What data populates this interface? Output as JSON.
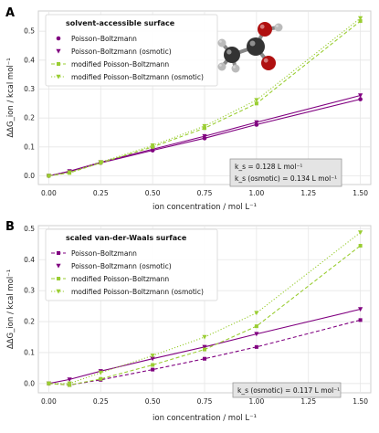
{
  "chart_data": [
    {
      "type": "line",
      "panel_label": "A",
      "xlabel": "ion concentration / mol L⁻¹",
      "ylabel": "ΔΔG_ion / kcal mol⁻¹",
      "xlim": [
        -0.05,
        1.55
      ],
      "ylim": [
        -0.03,
        0.57
      ],
      "xticks": [
        0.0,
        0.25,
        0.5,
        0.75,
        1.0,
        1.25,
        1.5
      ],
      "xtick_labels": [
        "0.00",
        "0.25",
        "0.50",
        "0.75",
        "1.00",
        "1.25",
        "1.50"
      ],
      "yticks": [
        0.0,
        0.1,
        0.2,
        0.3,
        0.4,
        0.5
      ],
      "ytick_labels": [
        "0.0",
        "0.1",
        "0.2",
        "0.3",
        "0.4",
        "0.5"
      ],
      "grid": true,
      "legend_title": "solvent-accessible surface",
      "legend_position": "top-left",
      "annotation": [
        "k_s = 0.128 L mol⁻¹",
        "k_s (osmotic) = 0.134 L mol⁻¹"
      ],
      "series": [
        {
          "name": "Poisson–Boltzmann",
          "color": "#800080",
          "marker": "circle",
          "line": "solid",
          "x": [
            0.0,
            0.1,
            0.25,
            0.5,
            0.75,
            1.0,
            1.5
          ],
          "values": [
            0.0,
            0.015,
            0.045,
            0.088,
            0.13,
            0.177,
            0.265
          ]
        },
        {
          "name": "Poisson–Boltzmann (osmotic)",
          "color": "#800080",
          "marker": "triangle-down",
          "line": "solid",
          "x": [
            0.0,
            0.1,
            0.25,
            0.5,
            0.75,
            1.0,
            1.5
          ],
          "values": [
            0.0,
            0.016,
            0.047,
            0.092,
            0.137,
            0.185,
            0.278
          ]
        },
        {
          "name": "modified Poisson–Boltzmann",
          "color": "#9acd32",
          "marker": "square",
          "line": "dashed",
          "x": [
            0.0,
            0.1,
            0.25,
            0.5,
            0.75,
            1.0,
            1.5
          ],
          "values": [
            0.0,
            0.01,
            0.045,
            0.1,
            0.165,
            0.25,
            0.535
          ]
        },
        {
          "name": "modified Poisson–Boltzmann (osmotic)",
          "color": "#9acd32",
          "marker": "triangle-down",
          "line": "dotted",
          "x": [
            0.0,
            0.1,
            0.25,
            0.5,
            0.75,
            1.0,
            1.5
          ],
          "values": [
            0.0,
            0.012,
            0.047,
            0.105,
            0.172,
            0.262,
            0.545
          ]
        }
      ]
    },
    {
      "type": "line",
      "panel_label": "B",
      "xlabel": "ion concentration / mol L⁻¹",
      "ylabel": "ΔΔG_ion / kcal mol⁻¹",
      "xlim": [
        -0.05,
        1.55
      ],
      "ylim": [
        -0.03,
        0.51
      ],
      "xticks": [
        0.0,
        0.25,
        0.5,
        0.75,
        1.0,
        1.25,
        1.5
      ],
      "xtick_labels": [
        "0.00",
        "0.25",
        "0.50",
        "0.75",
        "1.00",
        "1.25",
        "1.50"
      ],
      "yticks": [
        0.0,
        0.1,
        0.2,
        0.3,
        0.4,
        0.5
      ],
      "ytick_labels": [
        "0.0",
        "0.1",
        "0.2",
        "0.3",
        "0.4",
        "0.5"
      ],
      "grid": true,
      "legend_title": "scaled van-der-Waals surface",
      "legend_position": "top-left",
      "annotation": [
        "k_s (osmotic) = 0.117 L mol⁻¹"
      ],
      "series": [
        {
          "name": "Poisson–Boltzmann",
          "color": "#800080",
          "marker": "square",
          "line": "dashed",
          "x": [
            0.0,
            0.1,
            0.25,
            0.5,
            0.75,
            1.0,
            1.5
          ],
          "values": [
            0.0,
            -0.005,
            0.012,
            0.045,
            0.08,
            0.118,
            0.205
          ]
        },
        {
          "name": "Poisson–Boltzmann (osmotic)",
          "color": "#800080",
          "marker": "triangle-down",
          "line": "solid",
          "x": [
            0.0,
            0.1,
            0.25,
            0.5,
            0.75,
            1.0,
            1.5
          ],
          "values": [
            0.0,
            0.013,
            0.04,
            0.08,
            0.118,
            0.16,
            0.24
          ]
        },
        {
          "name": "modified Poisson–Boltzmann",
          "color": "#9acd32",
          "marker": "square",
          "line": "dashed",
          "x": [
            0.0,
            0.1,
            0.25,
            0.5,
            0.75,
            1.0,
            1.5
          ],
          "values": [
            0.0,
            -0.005,
            0.015,
            0.06,
            0.11,
            0.185,
            0.445
          ]
        },
        {
          "name": "modified Poisson–Boltzmann (osmotic)",
          "color": "#9acd32",
          "marker": "triangle-down",
          "line": "dotted",
          "x": [
            0.0,
            0.1,
            0.25,
            0.5,
            0.75,
            1.0,
            1.5
          ],
          "values": [
            0.0,
            0.0,
            0.035,
            0.09,
            0.15,
            0.228,
            0.488
          ]
        }
      ]
    }
  ],
  "molecule_image": {
    "atoms": [
      "C",
      "C",
      "O",
      "O",
      "H",
      "H",
      "H",
      "H"
    ],
    "colors": {
      "carbon": "#333333",
      "oxygen": "#b01010",
      "hydrogen": "#bbbbbb"
    }
  }
}
